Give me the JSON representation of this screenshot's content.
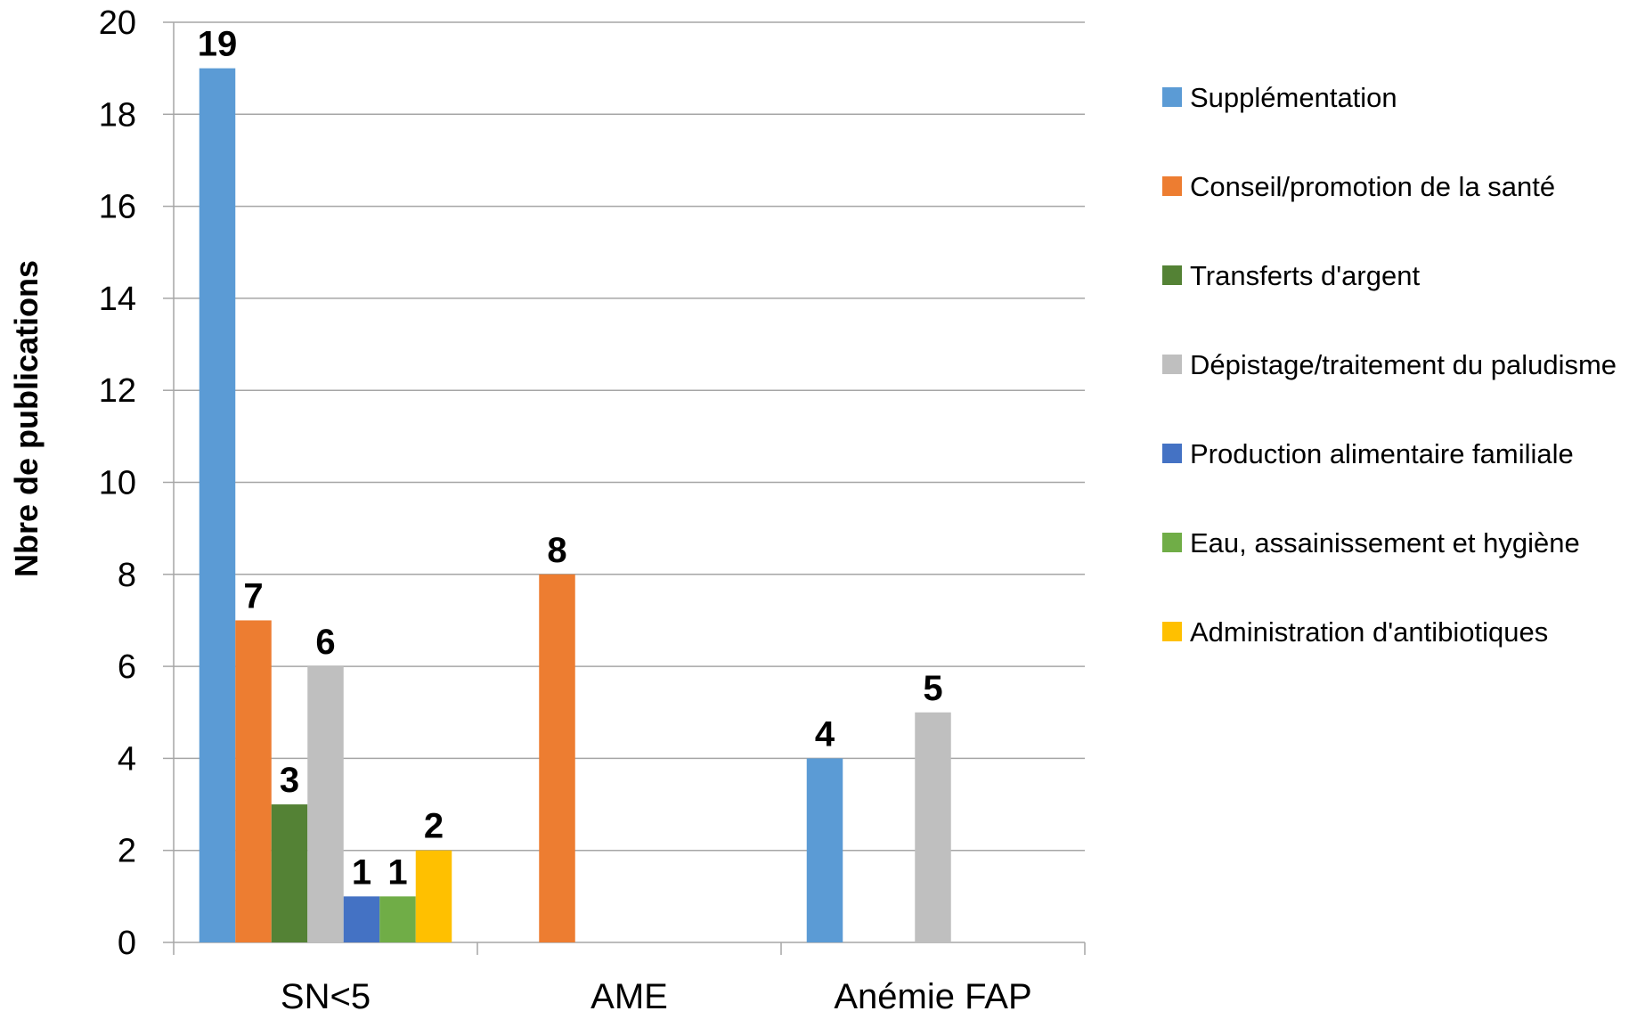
{
  "chart_data": {
    "type": "bar",
    "ylabel": "Nbre de  publications",
    "xlabel": "",
    "ylim": [
      0,
      20
    ],
    "yticks": [
      0,
      2,
      4,
      6,
      8,
      10,
      12,
      14,
      16,
      18,
      20
    ],
    "grid": true,
    "legend_position": "right",
    "categories": [
      "SN<5",
      "AME",
      "Anémie FAP"
    ],
    "series": [
      {
        "name": "Supplémentation",
        "color": "#5B9BD5",
        "values": [
          19,
          null,
          4
        ]
      },
      {
        "name": "Conseil/promotion de la santé",
        "color": "#ED7D31",
        "values": [
          7,
          8,
          null
        ]
      },
      {
        "name": "Transferts d'argent",
        "color": "#548235",
        "values": [
          3,
          null,
          null
        ]
      },
      {
        "name": "Dépistage/traitement du paludisme",
        "color": "#BFBFBF",
        "values": [
          6,
          null,
          5
        ]
      },
      {
        "name": "Production alimentaire familiale",
        "color": "#4472C4",
        "values": [
          1,
          null,
          null
        ]
      },
      {
        "name": "Eau, assainissement et hygiène",
        "color": "#70AD47",
        "values": [
          1,
          null,
          null
        ]
      },
      {
        "name": "Administration d'antibiotiques",
        "color": "#FFC000",
        "values": [
          2,
          null,
          null
        ]
      }
    ]
  }
}
